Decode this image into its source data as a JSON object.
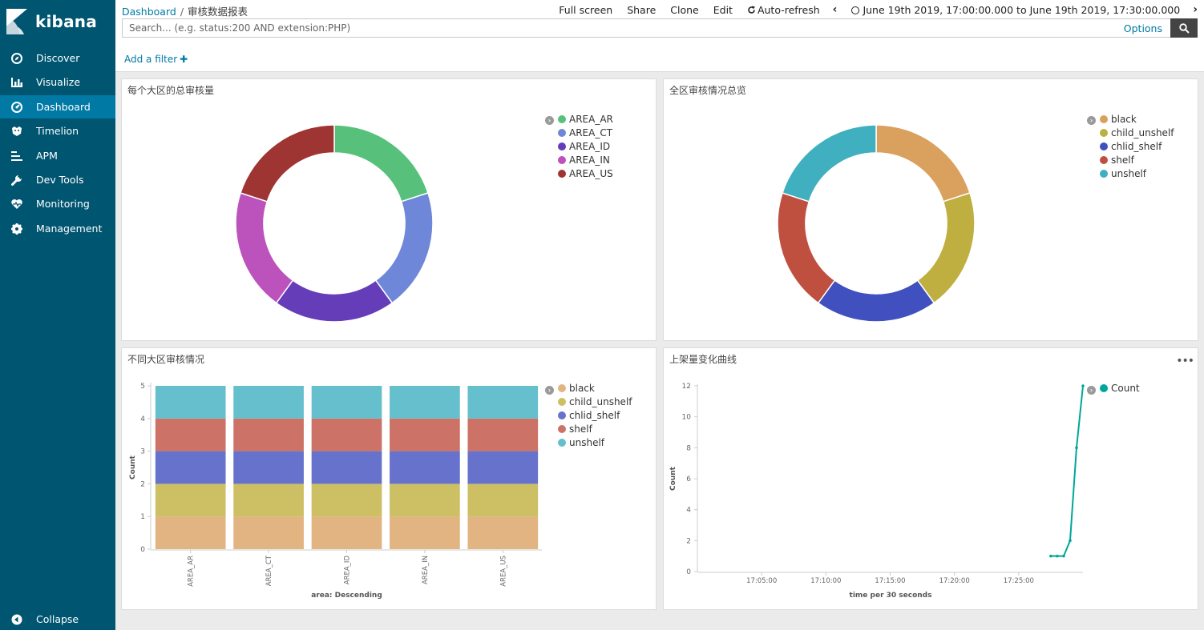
{
  "app": {
    "brand": "kibana"
  },
  "sidebar": {
    "items": [
      {
        "label": "Discover",
        "icon": "compass-icon"
      },
      {
        "label": "Visualize",
        "icon": "bar-chart-icon"
      },
      {
        "label": "Dashboard",
        "icon": "dashboard-icon",
        "active": true
      },
      {
        "label": "Timelion",
        "icon": "timelion-icon"
      },
      {
        "label": "APM",
        "icon": "apm-icon"
      },
      {
        "label": "Dev Tools",
        "icon": "wrench-icon"
      },
      {
        "label": "Monitoring",
        "icon": "heartbeat-icon"
      },
      {
        "label": "Management",
        "icon": "gear-icon"
      }
    ],
    "collapse_label": "Collapse"
  },
  "header": {
    "breadcrumb_root": "Dashboard",
    "breadcrumb_separator": "/",
    "breadcrumb_current": "审核数据报表",
    "full_screen": "Full screen",
    "share": "Share",
    "clone": "Clone",
    "edit": "Edit",
    "auto_refresh": "Auto-refresh",
    "time_range": "June 19th 2019, 17:00:00.000 to June 19th 2019, 17:30:00.000",
    "search_placeholder": "Search... (e.g. status:200 AND extension:PHP)",
    "options": "Options",
    "add_filter": "Add a filter",
    "add_filter_icon": "plus-icon"
  },
  "panels": {
    "area_total": {
      "title": "每个大区的总审核量"
    },
    "overview": {
      "title": "全区审核情况总览"
    },
    "area_status": {
      "title": "不同大区审核情况"
    },
    "shelf_curve": {
      "title": "上架量变化曲线"
    }
  },
  "chart_data": [
    {
      "type": "pie",
      "title": "每个大区的总审核量",
      "donut": true,
      "categories": [
        "AREA_AR",
        "AREA_CT",
        "AREA_ID",
        "AREA_IN",
        "AREA_US"
      ],
      "values": [
        5,
        5,
        5,
        5,
        5
      ],
      "colors": [
        "#57c17b",
        "#6f87d8",
        "#663db8",
        "#bc52bc",
        "#9e3533"
      ],
      "legend": "top-right"
    },
    {
      "type": "pie",
      "title": "全区审核情况总览",
      "donut": true,
      "categories": [
        "black",
        "child_unshelf",
        "chlid_shelf",
        "shelf",
        "unshelf"
      ],
      "values": [
        5,
        5,
        5,
        5,
        5
      ],
      "colors": [
        "#daa05d",
        "#bfaf40",
        "#4050bf",
        "#bf5040",
        "#40afbf"
      ],
      "legend": "top-right"
    },
    {
      "type": "bar",
      "stacked": true,
      "title": "不同大区审核情况",
      "categories": [
        "AREA_AR",
        "AREA_CT",
        "AREA_ID",
        "AREA_IN",
        "AREA_US"
      ],
      "series": [
        {
          "name": "black",
          "values": [
            1,
            1,
            1,
            1,
            1
          ],
          "color": "#e1b481"
        },
        {
          "name": "child_unshelf",
          "values": [
            1,
            1,
            1,
            1,
            1
          ],
          "color": "#cdbf63"
        },
        {
          "name": "chlid_shelf",
          "values": [
            1,
            1,
            1,
            1,
            1
          ],
          "color": "#6672cc"
        },
        {
          "name": "shelf",
          "values": [
            1,
            1,
            1,
            1,
            1
          ],
          "color": "#cc7266"
        },
        {
          "name": "unshelf",
          "values": [
            1,
            1,
            1,
            1,
            1
          ],
          "color": "#66bfcc"
        }
      ],
      "xlabel": "area: Descending",
      "ylabel": "Count",
      "yticks": [
        "0",
        "1",
        "2",
        "3",
        "4",
        "5"
      ],
      "ylim": [
        0,
        5
      ],
      "legend": "top-right"
    },
    {
      "type": "line",
      "title": "上架量变化曲线",
      "series": [
        {
          "name": "Count",
          "color": "#00a69b",
          "points": [
            {
              "x": "17:27:30",
              "y": 1
            },
            {
              "x": "17:28:00",
              "y": 1
            },
            {
              "x": "17:28:30",
              "y": 1
            },
            {
              "x": "17:29:00",
              "y": 2
            },
            {
              "x": "17:29:30",
              "y": 8
            },
            {
              "x": "17:30:00",
              "y": 12
            }
          ]
        }
      ],
      "xticks": [
        "17:05:00",
        "17:10:00",
        "17:15:00",
        "17:20:00",
        "17:25:00"
      ],
      "xlim": [
        "17:00:00",
        "17:30:00"
      ],
      "xlabel": "time per 30 seconds",
      "ylabel": "Count",
      "yticks": [
        "0",
        "2",
        "4",
        "6",
        "8",
        "10",
        "12"
      ],
      "ylim": [
        0,
        12
      ],
      "legend": "top-right"
    }
  ]
}
